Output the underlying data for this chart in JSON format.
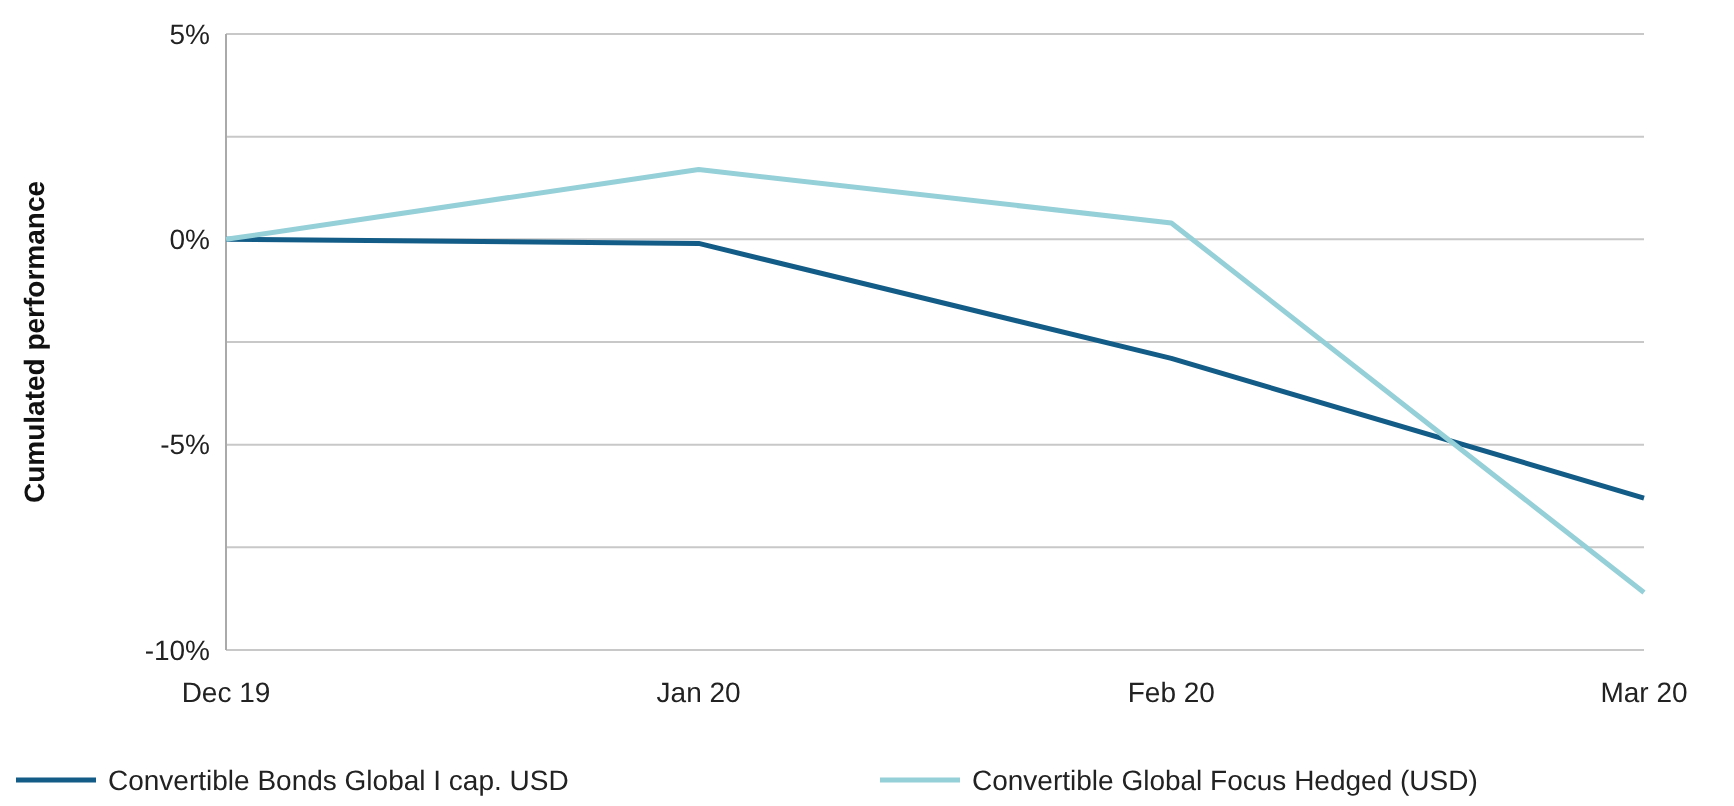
{
  "chart_data": {
    "type": "line",
    "ylabel": "Cumulated performance",
    "categories": [
      "Dec 19",
      "Jan 20",
      "Feb 20",
      "Mar 20"
    ],
    "series": [
      {
        "name": "Convertible Bonds Global I cap. USD",
        "color": "#125c87",
        "values": [
          0,
          -0.1,
          -2.9,
          -6.3
        ]
      },
      {
        "name": "Convertible Global Focus Hedged (USD)",
        "color": "#95cfd8",
        "values": [
          0,
          1.7,
          0.4,
          -8.6
        ]
      }
    ],
    "ylim": [
      -10,
      5
    ],
    "yticks": [
      {
        "value": -10,
        "label": "-10%"
      },
      {
        "value": -7.5,
        "label": null
      },
      {
        "value": -5,
        "label": "-5%"
      },
      {
        "value": -2.5,
        "label": null
      },
      {
        "value": 0,
        "label": "0%"
      },
      {
        "value": 2.5,
        "label": null
      },
      {
        "value": 5,
        "label": "5%"
      }
    ],
    "grid": "y",
    "legend": "bottom",
    "marker": "none",
    "line_style": "solid"
  }
}
